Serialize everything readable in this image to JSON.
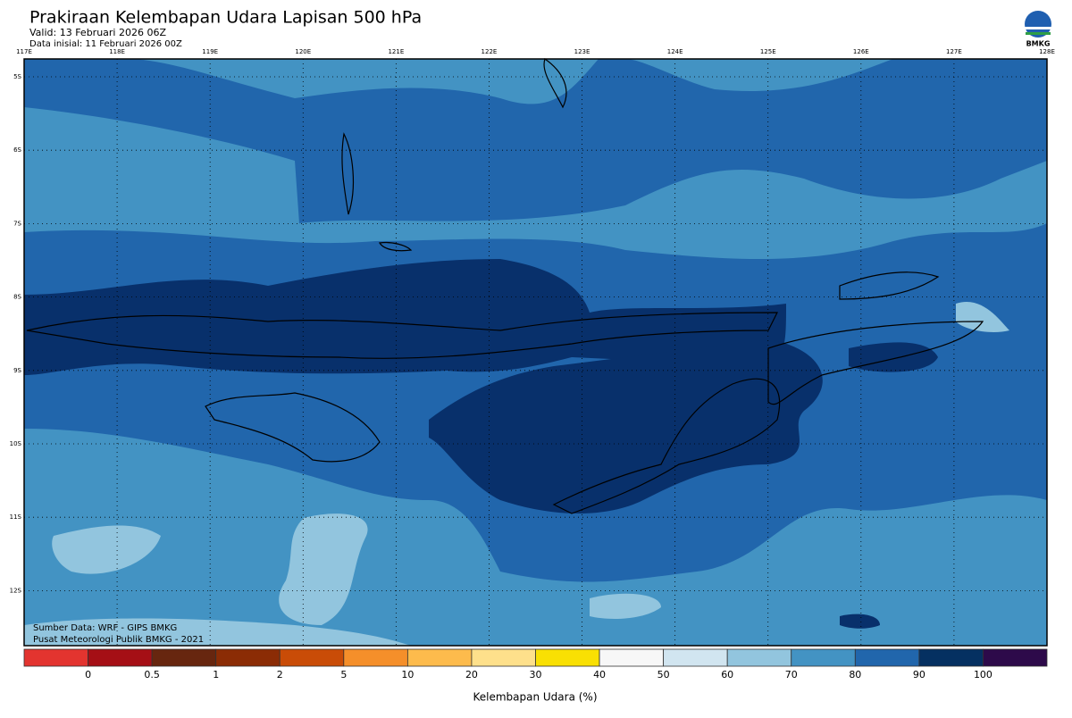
{
  "header": {
    "title": "Prakiraan Kelembapan Udara Lapisan 500 hPa",
    "valid": "Valid: 13 Februari 2026 06Z",
    "initial": "Data inisial: 11 Februari 2026 00Z",
    "logo": "BMKG"
  },
  "map": {
    "lon_labels": [
      "117E",
      "118E",
      "119E",
      "120E",
      "121E",
      "122E",
      "123E",
      "124E",
      "125E",
      "126E",
      "127E",
      "128E"
    ],
    "lat_labels": [
      "5S",
      "6S",
      "7S",
      "8S",
      "9S",
      "10S",
      "11S",
      "12S"
    ],
    "source": "Sumber Data: WRF - GIPS BMKG",
    "credit": "Pusat Meteorologi Publik BMKG - 2021"
  },
  "colorbar": {
    "colors": [
      "#e3342f",
      "#a50f15",
      "#67260f",
      "#8b2c05",
      "#c94c07",
      "#f58f2a",
      "#fdbb4c",
      "#fee08b",
      "#f9e003",
      "#f7f7f7",
      "#d1e5f0",
      "#92c5de",
      "#4393c3",
      "#2166ac",
      "#053061",
      "#2d0a4a"
    ],
    "ticks": [
      0,
      0.5,
      1,
      2,
      5,
      10,
      20,
      30,
      40,
      50,
      60,
      70,
      80,
      90,
      100
    ],
    "title": "Kelembapan Udara (%)"
  }
}
